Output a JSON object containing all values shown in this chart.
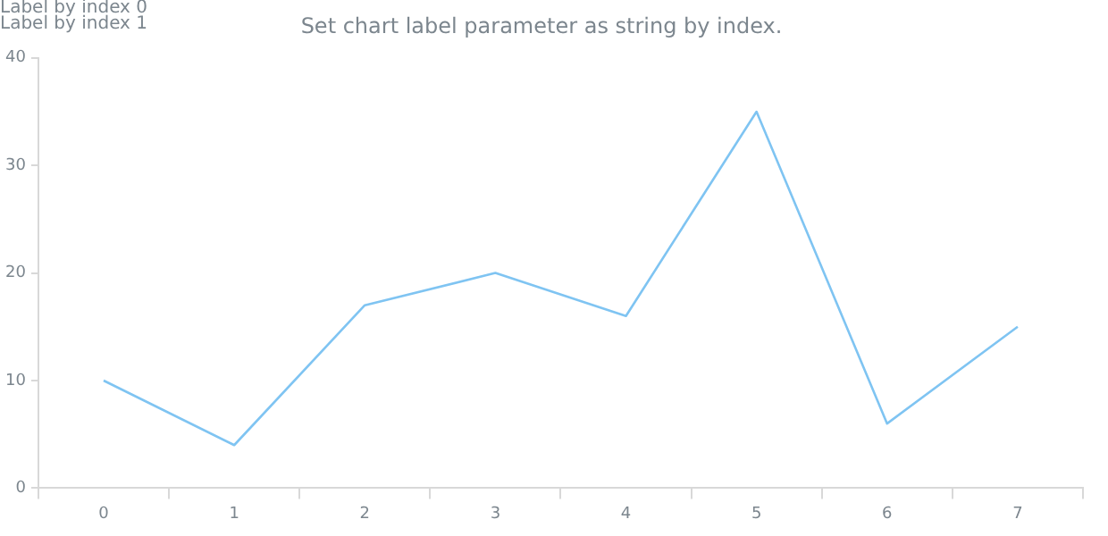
{
  "chart_data": {
    "type": "line",
    "title": "Set chart label parameter as string by index.",
    "annotations": [
      "Label by index 0",
      "Label by index 1"
    ],
    "categories": [
      "0",
      "1",
      "2",
      "3",
      "4",
      "5",
      "6",
      "7"
    ],
    "series": [
      {
        "color": "#7fc4f2",
        "values": [
          10,
          4,
          17,
          20,
          16,
          35,
          6,
          15
        ]
      }
    ],
    "ylim": [
      0,
      40
    ],
    "yticks": [
      0,
      10,
      20,
      30,
      40
    ],
    "grid": false,
    "legend": false,
    "marker": "none",
    "line_style": "solid"
  }
}
